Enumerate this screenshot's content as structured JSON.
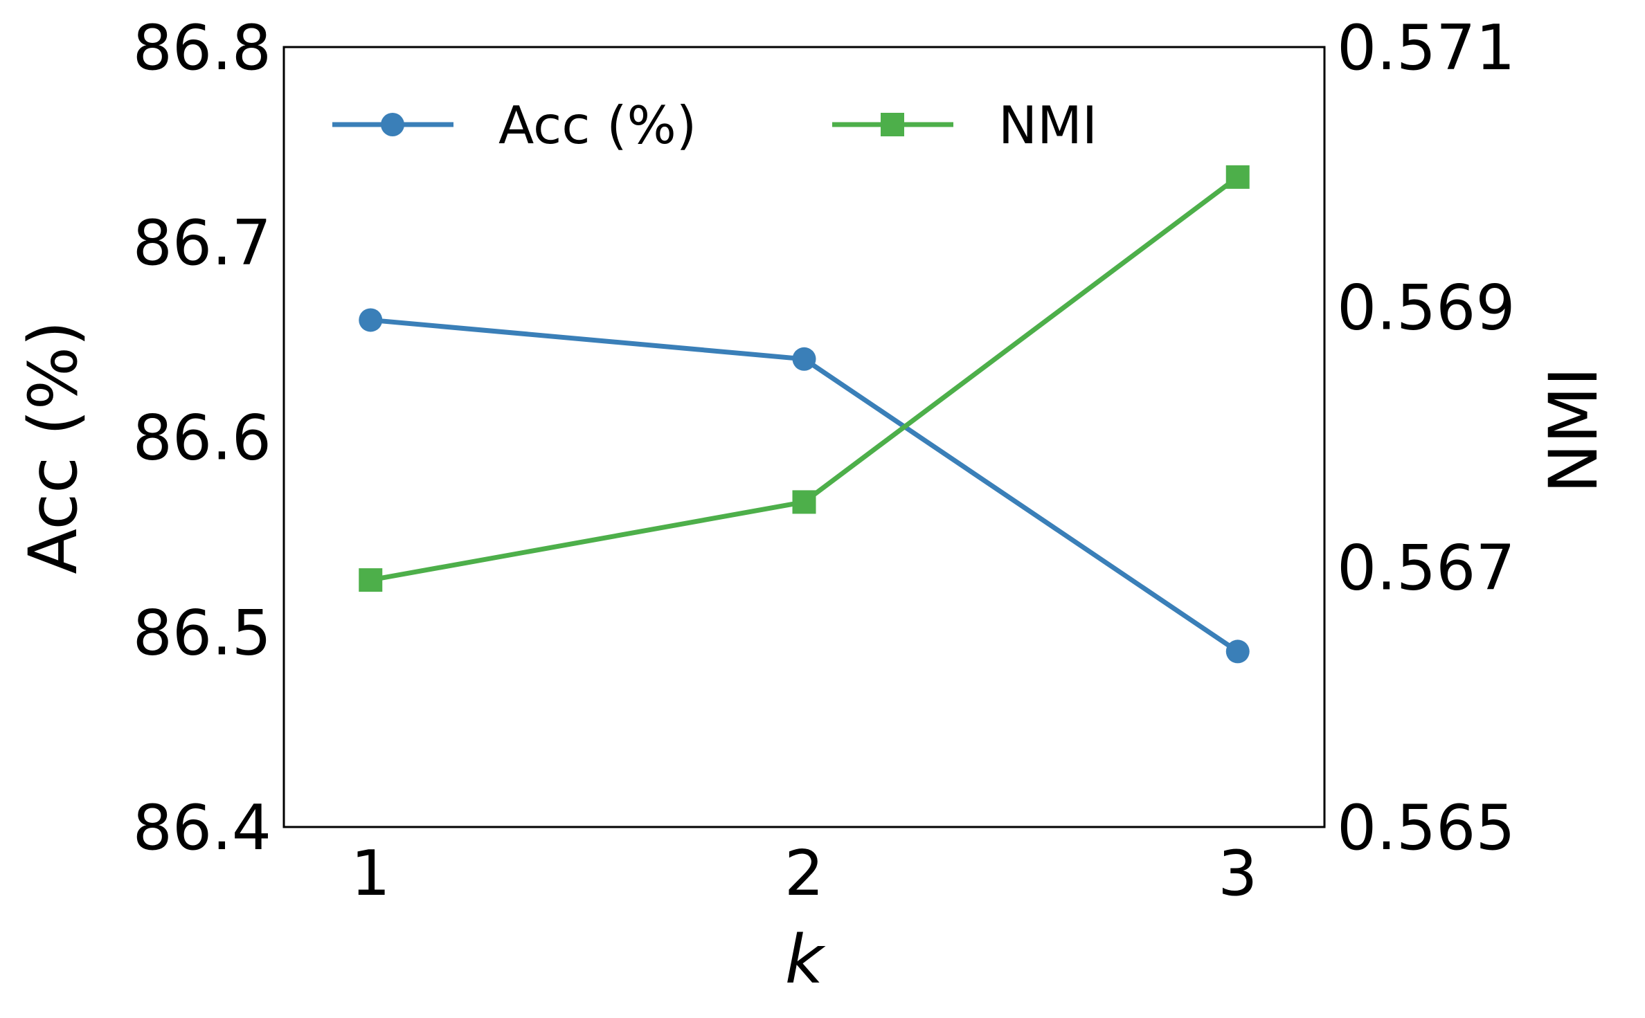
{
  "chart_data": {
    "type": "line",
    "x": [
      1,
      2,
      3
    ],
    "xlabel": "k",
    "xticks": [
      "1",
      "2",
      "3"
    ],
    "xlim": [
      0.8,
      3.2
    ],
    "y_left": {
      "label": "Acc (%)",
      "lim": [
        86.4,
        86.8
      ],
      "ticks": [
        "86.4",
        "86.5",
        "86.6",
        "86.7",
        "86.8"
      ]
    },
    "y_right": {
      "label": "NMI",
      "lim": [
        0.565,
        0.571
      ],
      "ticks": [
        "0.565",
        "0.567",
        "0.569",
        "0.571"
      ]
    },
    "series": [
      {
        "name": "Acc (%)",
        "axis": "left",
        "marker": "circle",
        "color": "#3a7fb8",
        "values": [
          86.66,
          86.64,
          86.49
        ]
      },
      {
        "name": "NMI",
        "axis": "right",
        "marker": "square",
        "color": "#4daf4a",
        "values": [
          0.5669,
          0.5675,
          0.57
        ]
      }
    ],
    "legend": "top-left, horizontal",
    "grid": false
  }
}
